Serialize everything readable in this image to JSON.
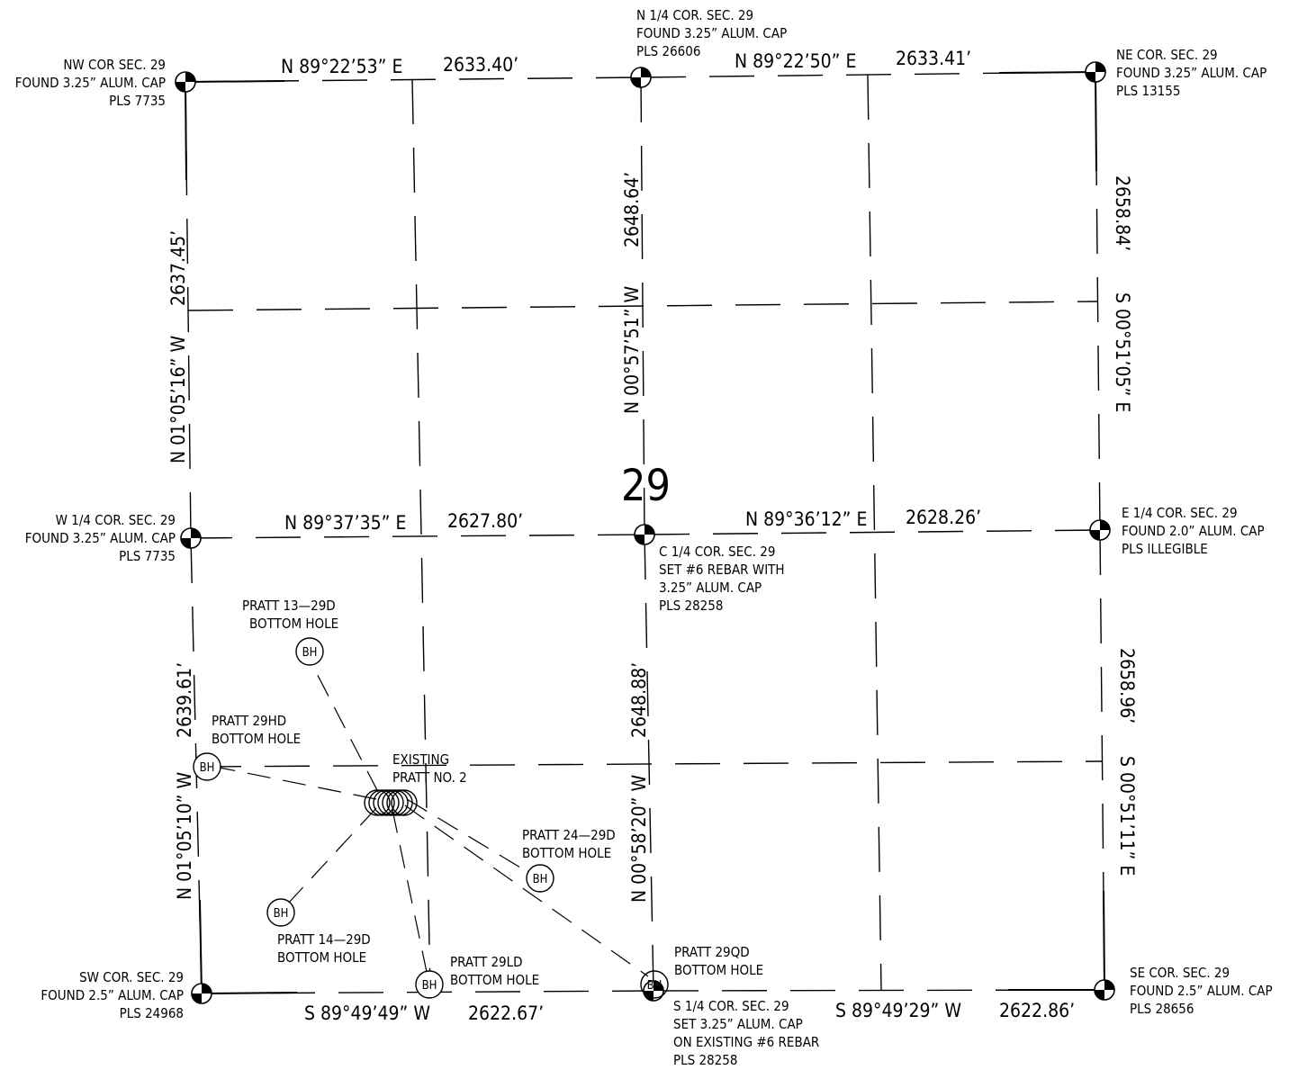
{
  "section_number": "29",
  "corners": {
    "nw": [
      "NW COR SEC. 29",
      "FOUND 3.25” ALUM. CAP",
      "PLS 7735"
    ],
    "n14": [
      "N 1/4 COR. SEC. 29",
      "FOUND 3.25” ALUM. CAP",
      "PLS 26606"
    ],
    "ne": [
      "NE COR. SEC. 29",
      "FOUND 3.25” ALUM. CAP",
      "PLS 13155"
    ],
    "w14": [
      "W 1/4 COR. SEC. 29",
      "FOUND 3.25” ALUM. CAP",
      "PLS 7735"
    ],
    "c14": [
      "C 1/4 COR. SEC. 29",
      "SET #6 REBAR WITH",
      "3.25” ALUM. CAP",
      "PLS 28258"
    ],
    "e14": [
      "E 1/4 COR. SEC. 29",
      "FOUND 2.0” ALUM. CAP",
      "PLS ILLEGIBLE"
    ],
    "sw": [
      "SW COR. SEC. 29",
      "FOUND 2.5” ALUM. CAP",
      "PLS 24968"
    ],
    "s14": [
      "S 1/4 COR. SEC. 29",
      "SET 3.25” ALUM. CAP",
      "ON EXISTING #6 REBAR",
      "PLS 28258"
    ],
    "se": [
      "SE COR. SEC. 29",
      "FOUND 2.5” ALUM. CAP",
      "PLS 28656"
    ]
  },
  "courses": {
    "north_west_bearing": "N 89°22’53” E",
    "north_west_distance": "2633.40’",
    "north_east_bearing": "N 89°22’50” E",
    "north_east_distance": "2633.41’",
    "mid_west_bearing": "N 89°37’35” E",
    "mid_west_distance": "2627.80’",
    "mid_east_bearing": "N 89°36’12” E",
    "mid_east_distance": "2628.26’",
    "south_west_bearing": "S 89°49’49” W",
    "south_west_distance": "2622.67’",
    "south_east_bearing": "S 89°49’29” W",
    "south_east_distance": "2622.86’",
    "west_upper_bearing": "N 01°05’16” W",
    "west_upper_distance": "2637.45’",
    "west_lower_bearing": "N 01°05’10” W",
    "west_lower_distance": "2639.61’",
    "center_upper_bearing": "N 00°57’51” W",
    "center_upper_distance": "2648.64’",
    "center_lower_bearing": "N 00°58’20” W",
    "center_lower_distance": "2648.88’",
    "east_upper_bearing": "S 00°51’05” E",
    "east_upper_distance": "2658.84’",
    "east_lower_bearing": "S 00°51’11” E",
    "east_lower_distance": "2658.96’"
  },
  "wells": {
    "existing": [
      "EXISTING",
      "PRATT NO. 2"
    ],
    "bh_symbol": "BH",
    "p13_29d": [
      "PRATT 13—29D",
      "BOTTOM HOLE"
    ],
    "p29hd": [
      "PRATT 29HD",
      "BOTTOM HOLE"
    ],
    "p24_29d": [
      "PRATT 24—29D",
      "BOTTOM HOLE"
    ],
    "p14_29d": [
      "PRATT 14—29D",
      "BOTTOM HOLE"
    ],
    "p29ld": [
      "PRATT 29LD",
      "BOTTOM HOLE"
    ],
    "p29qd": [
      "PRATT 29QD",
      "BOTTOM HOLE"
    ]
  }
}
